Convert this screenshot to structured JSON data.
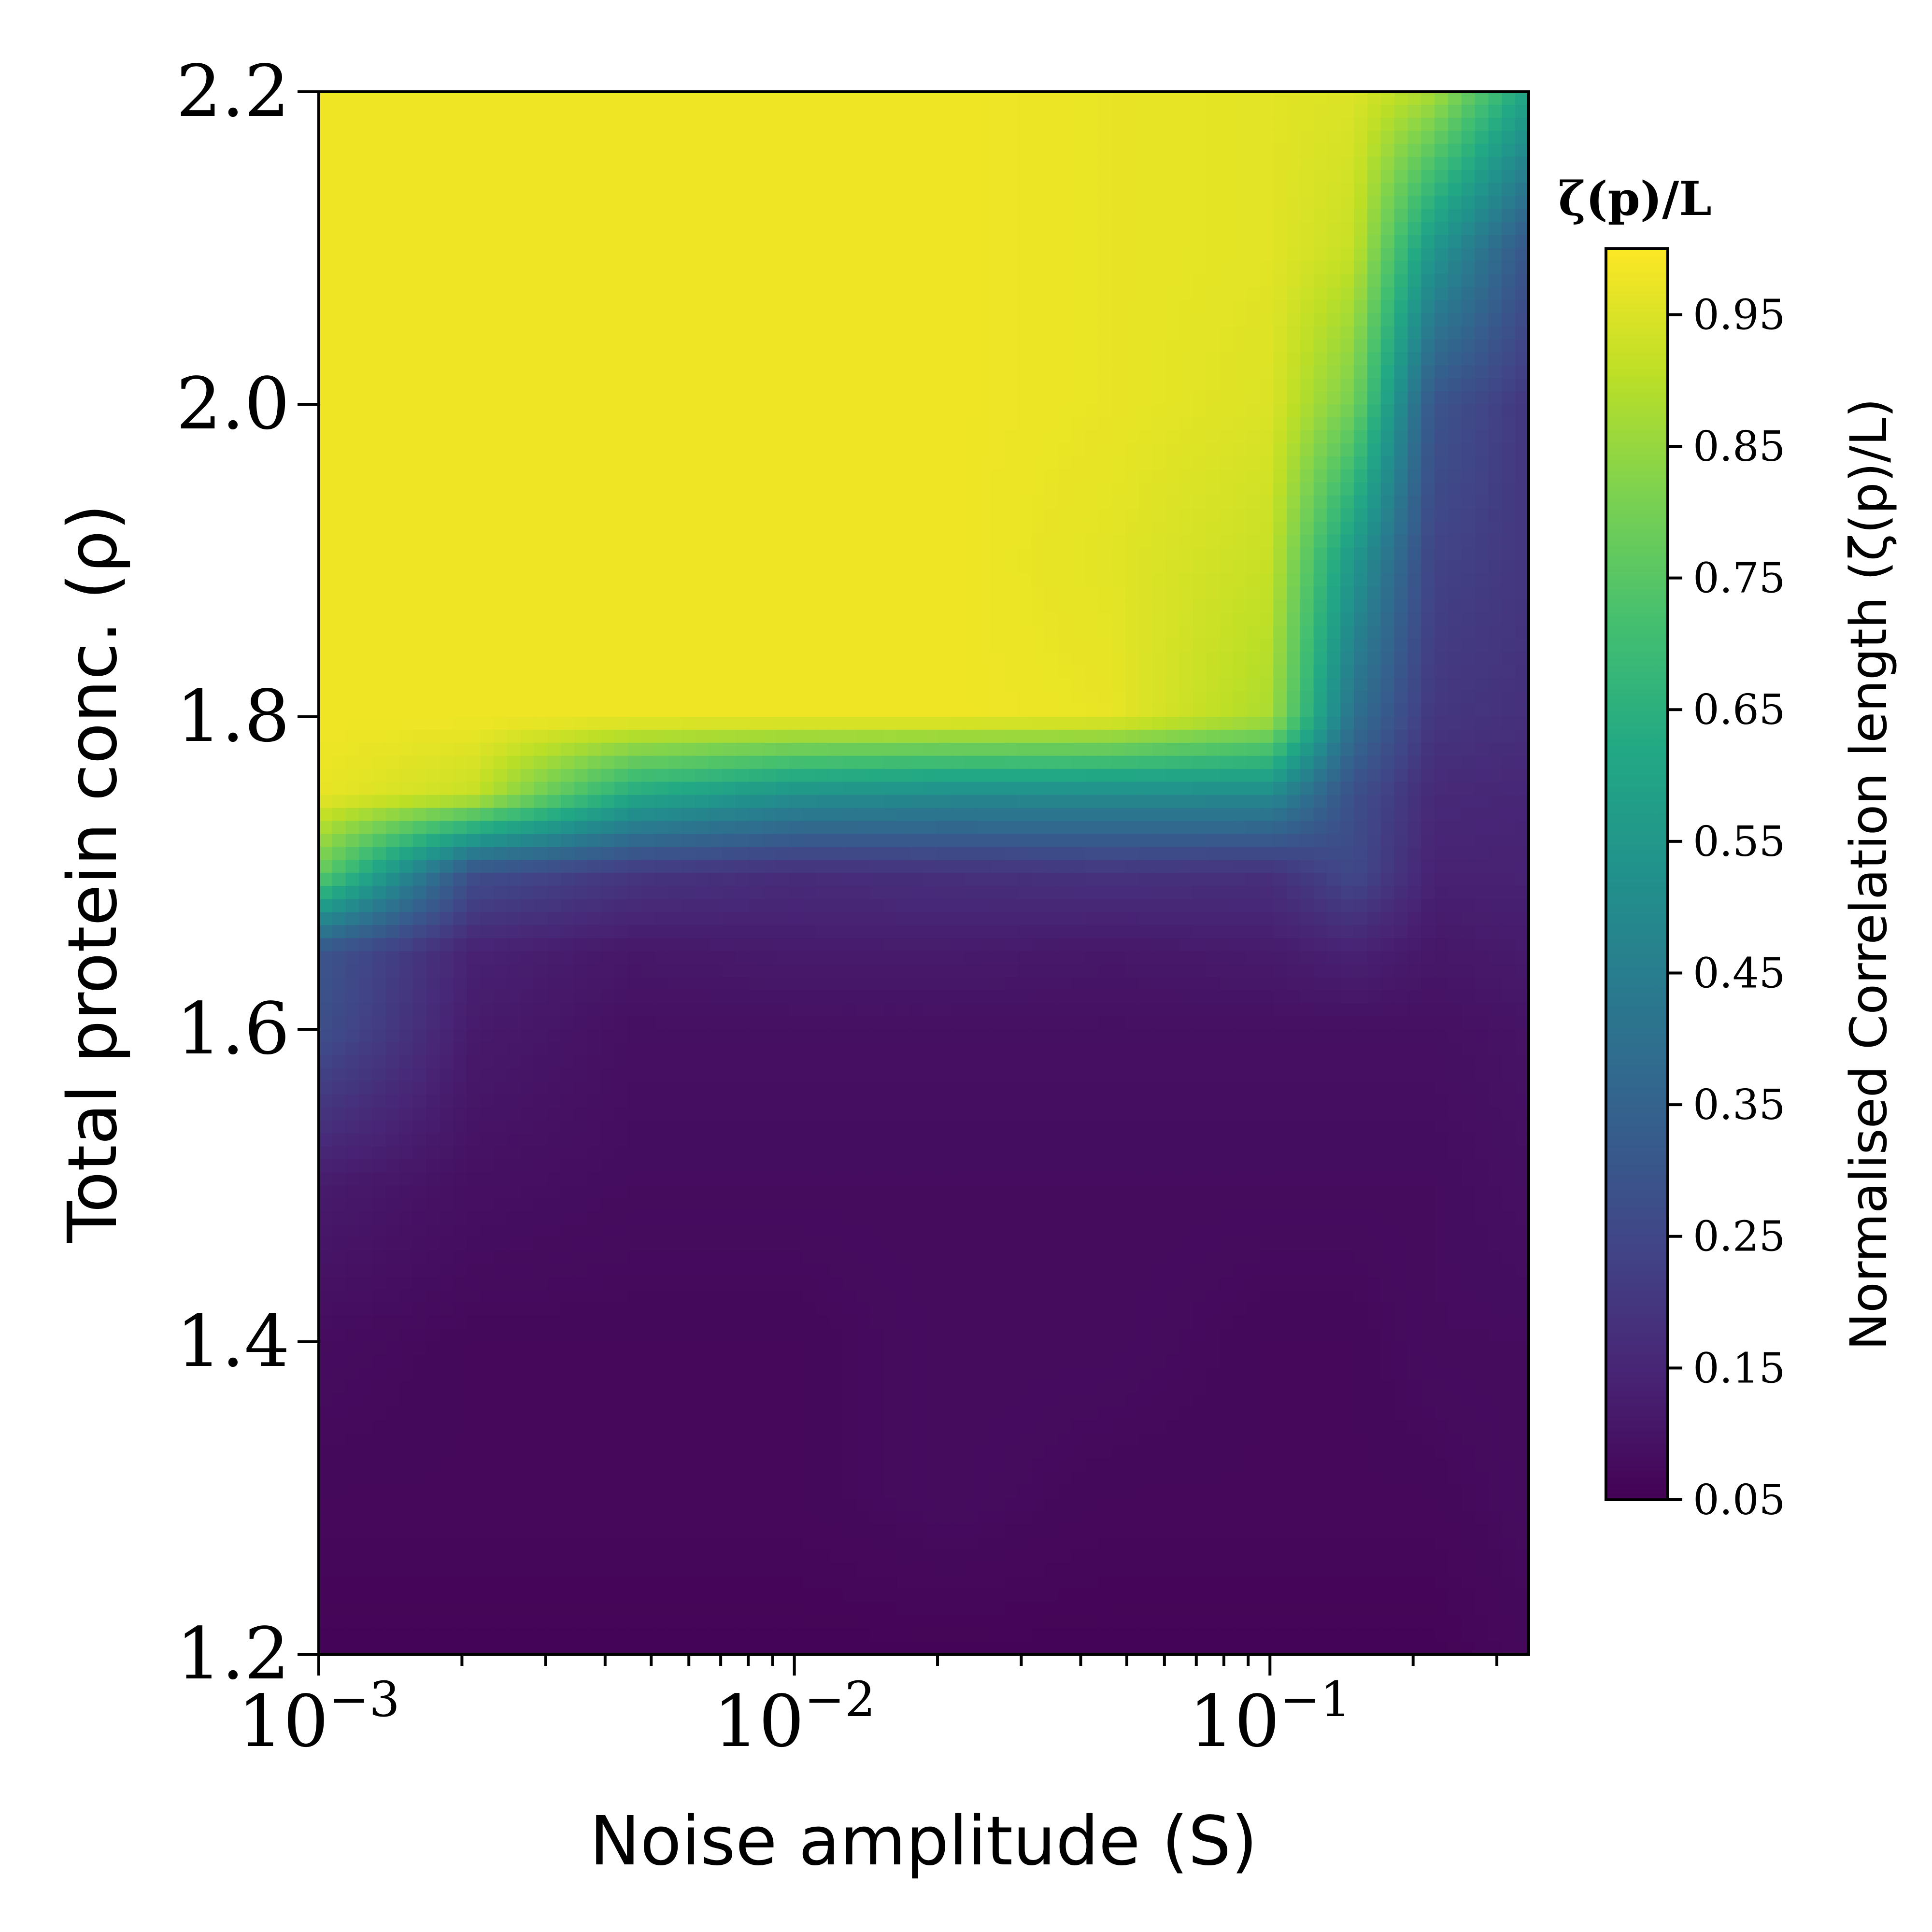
{
  "chart_data": {
    "type": "heatmap",
    "xlabel": "Noise amplitude (S)",
    "ylabel": "Total protein conc. (ρ)",
    "x_scale": "log",
    "xlim": [
      0.001,
      0.35
    ],
    "ylim": [
      1.2,
      2.2
    ],
    "x_ticks": [
      {
        "value": 0.001,
        "label_base": "10",
        "label_exp": "−3"
      },
      {
        "value": 0.01,
        "label_base": "10",
        "label_exp": "−2"
      },
      {
        "value": 0.1,
        "label_base": "10",
        "label_exp": "−1"
      }
    ],
    "y_ticks": [
      {
        "value": 1.2,
        "label": "1.2"
      },
      {
        "value": 1.4,
        "label": "1.4"
      },
      {
        "value": 1.6,
        "label": "1.6"
      },
      {
        "value": 1.8,
        "label": "1.8"
      },
      {
        "value": 2.0,
        "label": "2.0"
      },
      {
        "value": 2.2,
        "label": "2.2"
      }
    ],
    "colorbar": {
      "title": "ζ(p)/L",
      "label": "Normalised Correlation length (ζ(p)/L)",
      "range": [
        0.05,
        1.0
      ],
      "ticks": [
        {
          "value": 0.05,
          "label": "0.05"
        },
        {
          "value": 0.15,
          "label": "0.15"
        },
        {
          "value": 0.25,
          "label": "0.25"
        },
        {
          "value": 0.35,
          "label": "0.35"
        },
        {
          "value": 0.45,
          "label": "0.45"
        },
        {
          "value": 0.55,
          "label": "0.55"
        },
        {
          "value": 0.65,
          "label": "0.65"
        },
        {
          "value": 0.75,
          "label": "0.75"
        },
        {
          "value": 0.85,
          "label": "0.85"
        },
        {
          "value": 0.95,
          "label": "0.95"
        }
      ],
      "colormap": "viridis"
    },
    "x": [
      0.001,
      0.0021,
      0.0046,
      0.01,
      0.021,
      0.046,
      0.1,
      0.15,
      0.22,
      0.35
    ],
    "y": [
      1.2,
      1.3,
      1.4,
      1.5,
      1.6,
      1.65,
      1.7,
      1.75,
      1.8,
      1.9,
      2.0,
      2.1,
      2.2
    ],
    "z": [
      [
        0.06,
        0.06,
        0.06,
        0.06,
        0.06,
        0.06,
        0.06,
        0.06,
        0.06,
        0.07
      ],
      [
        0.07,
        0.07,
        0.07,
        0.07,
        0.08,
        0.07,
        0.07,
        0.07,
        0.07,
        0.08
      ],
      [
        0.08,
        0.07,
        0.07,
        0.07,
        0.08,
        0.08,
        0.07,
        0.07,
        0.08,
        0.08
      ],
      [
        0.12,
        0.09,
        0.08,
        0.08,
        0.08,
        0.08,
        0.08,
        0.08,
        0.08,
        0.09
      ],
      [
        0.28,
        0.12,
        0.09,
        0.09,
        0.09,
        0.09,
        0.09,
        0.09,
        0.09,
        0.1
      ],
      [
        0.3,
        0.14,
        0.11,
        0.12,
        0.12,
        0.11,
        0.12,
        0.14,
        0.11,
        0.12
      ],
      [
        0.78,
        0.28,
        0.2,
        0.17,
        0.18,
        0.19,
        0.18,
        0.26,
        0.14,
        0.14
      ],
      [
        0.97,
        0.92,
        0.62,
        0.52,
        0.5,
        0.5,
        0.5,
        0.28,
        0.16,
        0.15
      ],
      [
        0.98,
        0.98,
        0.98,
        0.98,
        0.98,
        0.97,
        0.88,
        0.4,
        0.2,
        0.18
      ],
      [
        0.98,
        0.98,
        0.98,
        0.98,
        0.98,
        0.96,
        0.92,
        0.55,
        0.24,
        0.2
      ],
      [
        0.98,
        0.98,
        0.98,
        0.98,
        0.98,
        0.97,
        0.95,
        0.8,
        0.3,
        0.2
      ],
      [
        0.98,
        0.98,
        0.98,
        0.98,
        0.98,
        0.97,
        0.96,
        0.92,
        0.55,
        0.3
      ],
      [
        0.98,
        0.98,
        0.98,
        0.98,
        0.98,
        0.97,
        0.96,
        0.95,
        0.88,
        0.6
      ]
    ]
  }
}
